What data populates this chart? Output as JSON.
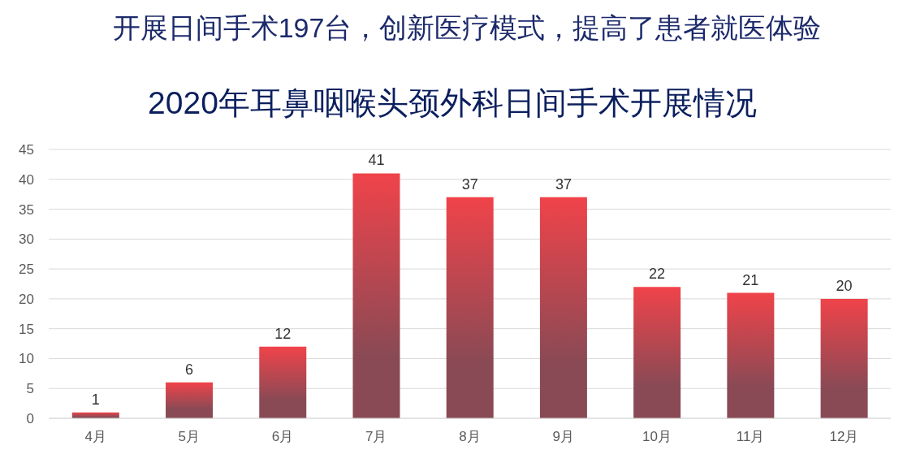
{
  "chart_data": {
    "type": "bar",
    "title": "开展日间手术197台，创新医疗模式，提高了患者就医体验",
    "subtitle": "2020年耳鼻咽喉头颈外科日间手术开展情况",
    "categories": [
      "4月",
      "5月",
      "6月",
      "7月",
      "8月",
      "9月",
      "10月",
      "11月",
      "12月"
    ],
    "values": [
      1,
      6,
      12,
      41,
      37,
      37,
      22,
      21,
      20
    ],
    "color": "#f0434a",
    "ylim": [
      0,
      45
    ],
    "yticks": [
      0,
      5,
      10,
      15,
      20,
      25,
      30,
      35,
      40,
      45
    ],
    "grid": "y",
    "legend": false,
    "data_labels": true
  }
}
